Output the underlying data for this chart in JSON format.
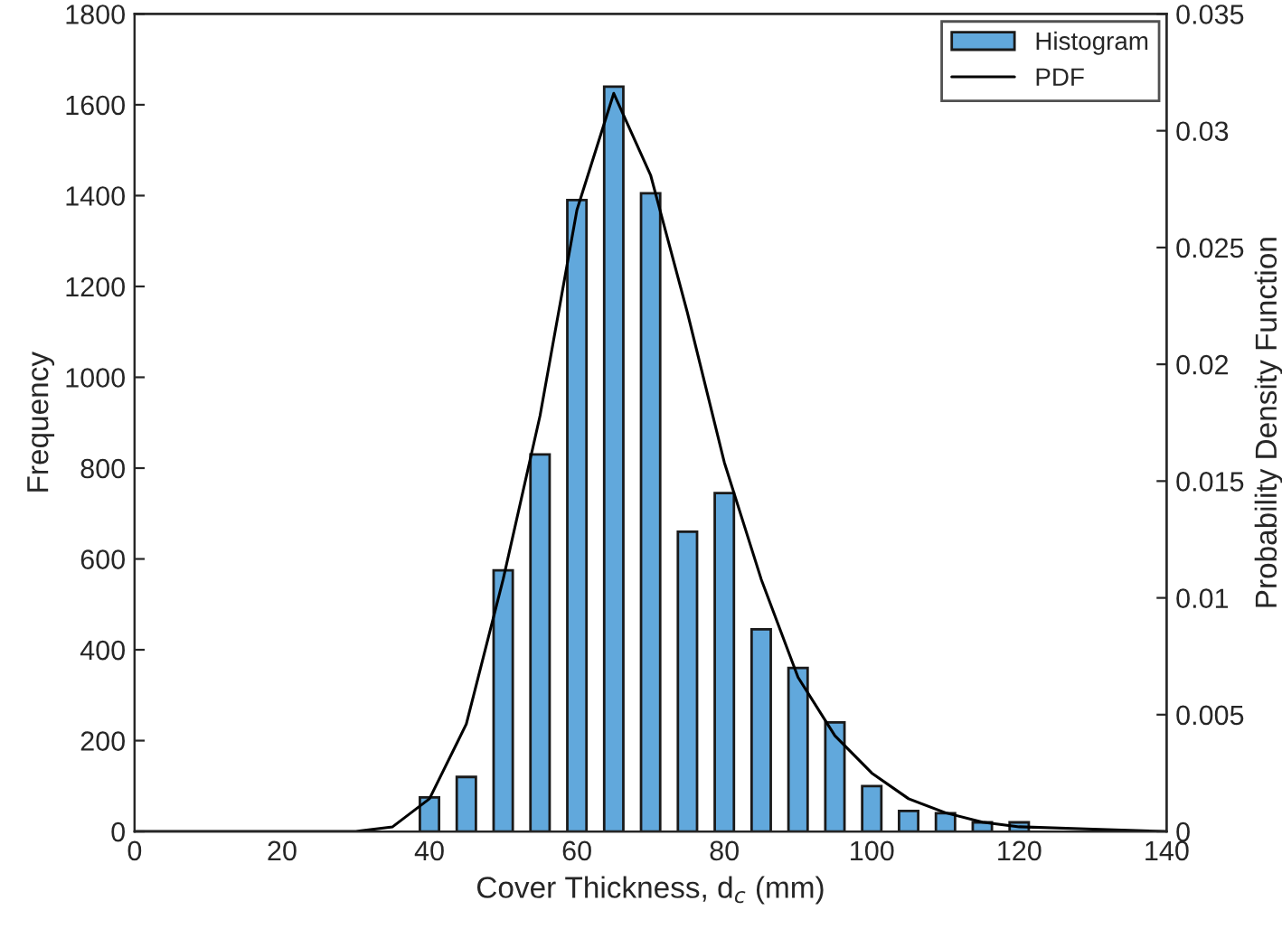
{
  "chart_data": {
    "type": "bar",
    "xlabel": "Cover Thickness, d$_{c}$ (mm)",
    "ylabel": "Frequency",
    "y2label": "Probability Density Function",
    "series": [
      {
        "name": "Histogram",
        "color": "#61a8dc",
        "x": [
          40,
          45,
          50,
          55,
          60,
          65,
          70,
          75,
          80,
          85,
          90,
          95,
          100,
          105,
          110,
          115,
          120
        ],
        "values": [
          75,
          120,
          575,
          830,
          1390,
          1640,
          1405,
          660,
          745,
          445,
          360,
          240,
          100,
          45,
          40,
          20,
          20
        ]
      },
      {
        "name": "PDF",
        "type": "line",
        "axis": "y2",
        "color": "#000000",
        "x": [
          0,
          20,
          30,
          35,
          40,
          45,
          50,
          55,
          60,
          65,
          70,
          75,
          80,
          85,
          90,
          95,
          100,
          105,
          110,
          115,
          120,
          130,
          140
        ],
        "values": [
          0,
          0,
          0,
          0.0002,
          0.0014,
          0.0046,
          0.0108,
          0.0178,
          0.0266,
          0.0316,
          0.0281,
          0.0222,
          0.0158,
          0.0108,
          0.0066,
          0.0041,
          0.0025,
          0.0014,
          0.0008,
          0.0004,
          0.0002,
          0.0001,
          0
        ]
      }
    ],
    "xlim": [
      0,
      140
    ],
    "xticks": [
      0,
      20,
      40,
      60,
      80,
      100,
      120,
      140
    ],
    "ylim": [
      0,
      1800
    ],
    "yticks": [
      0,
      200,
      400,
      600,
      800,
      1000,
      1200,
      1400,
      1600,
      1800
    ],
    "y2lim": [
      0,
      0.035
    ],
    "y2ticks": [
      0,
      0.005,
      0.01,
      0.015,
      0.02,
      0.025,
      0.03,
      0.035
    ],
    "legend": "top right",
    "grid": false
  }
}
